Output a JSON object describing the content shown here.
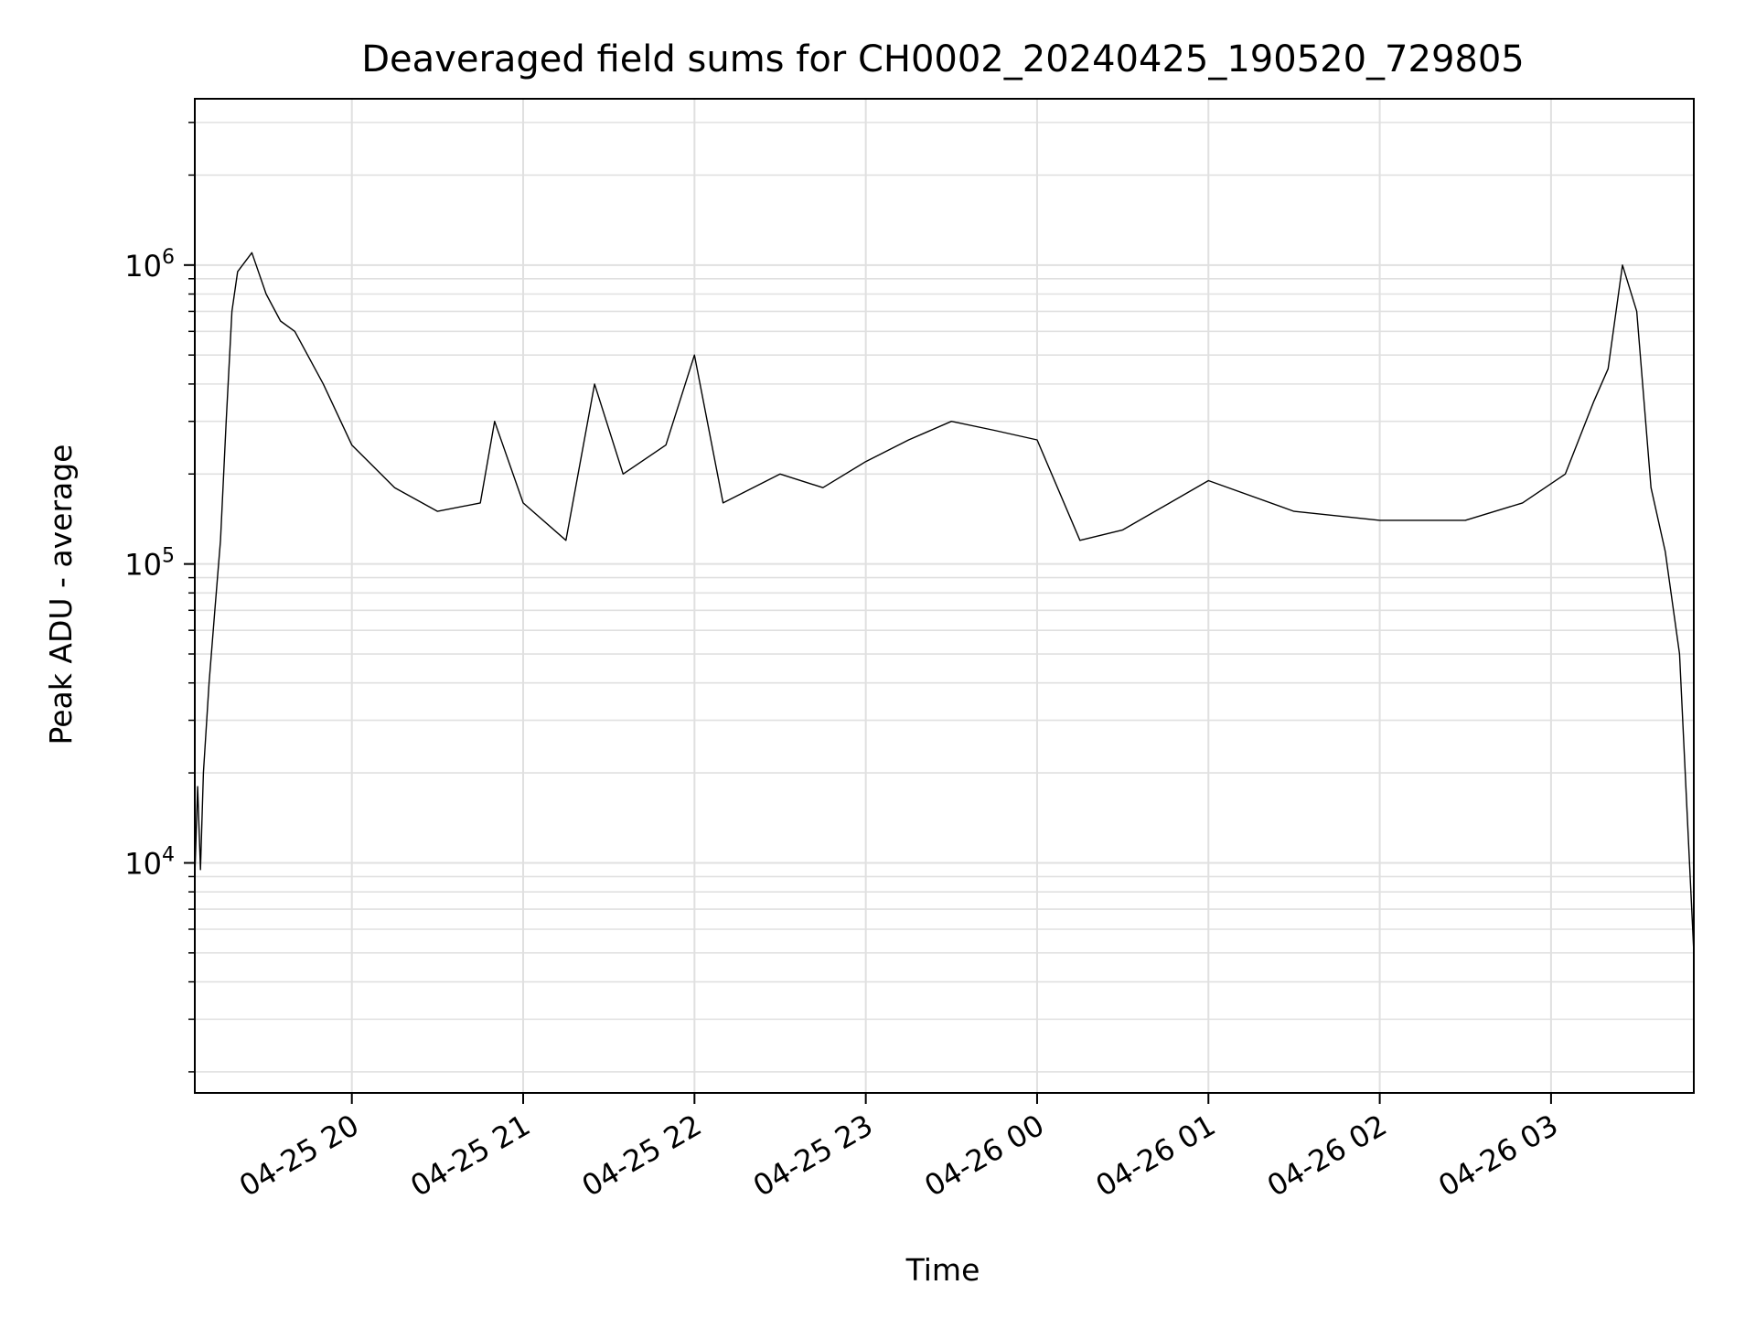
{
  "chart_data": {
    "type": "line",
    "title": "Deaveraged field sums for CH0002_20240425_190520_729805",
    "xlabel": "Time",
    "ylabel": "Peak ADU - average",
    "y_scale": "log",
    "ylim": [
      1700,
      3600000
    ],
    "xlim": [
      "2024-04-25 19:05",
      "2024-04-26 03:50"
    ],
    "grid": true,
    "line_color": "#000000",
    "grid_color": "#e0e0e0",
    "x_ticks": [
      {
        "t": "2024-04-25 20:00",
        "label": "04-25 20"
      },
      {
        "t": "2024-04-25 21:00",
        "label": "04-25 21"
      },
      {
        "t": "2024-04-25 22:00",
        "label": "04-25 22"
      },
      {
        "t": "2024-04-25 23:00",
        "label": "04-25 23"
      },
      {
        "t": "2024-04-26 00:00",
        "label": "04-26 00"
      },
      {
        "t": "2024-04-26 01:00",
        "label": "04-26 01"
      },
      {
        "t": "2024-04-26 02:00",
        "label": "04-26 02"
      },
      {
        "t": "2024-04-26 03:00",
        "label": "04-26 03"
      }
    ],
    "y_ticks": [
      {
        "value": 10000,
        "base": "10",
        "exp": "4"
      },
      {
        "value": 100000,
        "base": "10",
        "exp": "5"
      },
      {
        "value": 1000000,
        "base": "10",
        "exp": "6"
      }
    ],
    "series": [
      {
        "x": [
          "2024-04-25 19:05",
          "2024-04-25 19:06",
          "2024-04-25 19:07",
          "2024-04-25 19:08",
          "2024-04-25 19:10",
          "2024-04-25 19:12",
          "2024-04-25 19:14",
          "2024-04-25 19:16",
          "2024-04-25 19:18",
          "2024-04-25 19:20",
          "2024-04-25 19:25",
          "2024-04-25 19:30",
          "2024-04-25 19:35",
          "2024-04-25 19:40",
          "2024-04-25 19:50",
          "2024-04-25 20:00",
          "2024-04-25 20:15",
          "2024-04-25 20:30",
          "2024-04-25 20:45",
          "2024-04-25 20:50",
          "2024-04-25 21:00",
          "2024-04-25 21:15",
          "2024-04-25 21:25",
          "2024-04-25 21:35",
          "2024-04-25 21:50",
          "2024-04-25 22:00",
          "2024-04-25 22:10",
          "2024-04-25 22:30",
          "2024-04-25 22:45",
          "2024-04-25 23:00",
          "2024-04-25 23:15",
          "2024-04-25 23:30",
          "2024-04-25 23:45",
          "2024-04-26 00:00",
          "2024-04-26 00:15",
          "2024-04-26 00:30",
          "2024-04-26 01:00",
          "2024-04-26 01:30",
          "2024-04-26 02:00",
          "2024-04-26 02:30",
          "2024-04-26 02:50",
          "2024-04-26 03:05",
          "2024-04-26 03:15",
          "2024-04-26 03:20",
          "2024-04-26 03:25",
          "2024-04-26 03:30",
          "2024-04-26 03:35",
          "2024-04-26 03:40",
          "2024-04-26 03:45",
          "2024-04-26 03:50"
        ],
        "y": [
          9000,
          18000,
          9500,
          20000,
          40000,
          70000,
          120000,
          300000,
          700000,
          950000,
          1100000,
          800000,
          650000,
          600000,
          400000,
          250000,
          180000,
          150000,
          160000,
          300000,
          160000,
          120000,
          400000,
          200000,
          250000,
          500000,
          160000,
          200000,
          180000,
          220000,
          260000,
          300000,
          280000,
          260000,
          120000,
          130000,
          190000,
          150000,
          140000,
          140000,
          160000,
          200000,
          350000,
          450000,
          1000000,
          700000,
          180000,
          110000,
          50000,
          5000
        ]
      }
    ]
  }
}
